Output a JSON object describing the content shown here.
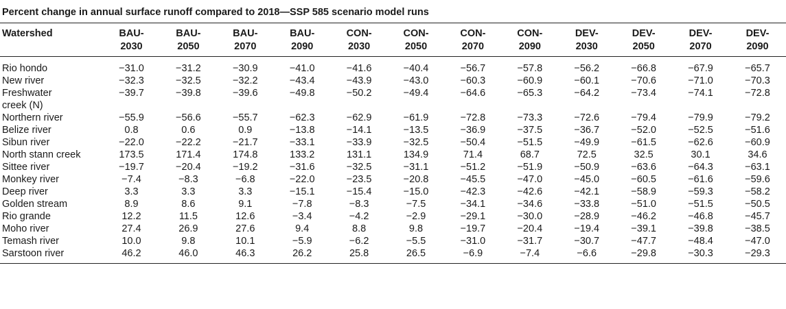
{
  "caption": "Percent change in annual surface runoff compared to 2018—SSP 585 scenario model runs",
  "header": {
    "watershed_label": "Watershed",
    "columns": [
      [
        "BAU-",
        "2030"
      ],
      [
        "BAU-",
        "2050"
      ],
      [
        "BAU-",
        "2070"
      ],
      [
        "BAU-",
        "2090"
      ],
      [
        "CON-",
        "2030"
      ],
      [
        "CON-",
        "2050"
      ],
      [
        "CON-",
        "2070"
      ],
      [
        "CON-",
        "2090"
      ],
      [
        "DEV-",
        "2030"
      ],
      [
        "DEV-",
        "2050"
      ],
      [
        "DEV-",
        "2070"
      ],
      [
        "DEV-",
        "2090"
      ]
    ]
  },
  "rows": [
    {
      "name": "Rio hondo",
      "values": [
        "−31.0",
        "−31.2",
        "−30.9",
        "−41.0",
        "−41.6",
        "−40.4",
        "−56.7",
        "−57.8",
        "−56.2",
        "−66.8",
        "−67.9",
        "−65.7"
      ]
    },
    {
      "name": "New river",
      "values": [
        "−32.3",
        "−32.5",
        "−32.2",
        "−43.4",
        "−43.9",
        "−43.0",
        "−60.3",
        "−60.9",
        "−60.1",
        "−70.6",
        "−71.0",
        "−70.3"
      ]
    },
    {
      "name": "Freshwater creek (N)",
      "name_lines": [
        "Freshwater",
        "creek (N)"
      ],
      "values": [
        "−39.7",
        "−39.8",
        "−39.6",
        "−49.8",
        "−50.2",
        "−49.4",
        "−64.6",
        "−65.3",
        "−64.2",
        "−73.4",
        "−74.1",
        "−72.8"
      ]
    },
    {
      "name": "Northern river",
      "values": [
        "−55.9",
        "−56.6",
        "−55.7",
        "−62.3",
        "−62.9",
        "−61.9",
        "−72.8",
        "−73.3",
        "−72.6",
        "−79.4",
        "−79.9",
        "−79.2"
      ]
    },
    {
      "name": "Belize river",
      "values": [
        "0.8",
        "0.6",
        "0.9",
        "−13.8",
        "−14.1",
        "−13.5",
        "−36.9",
        "−37.5",
        "−36.7",
        "−52.0",
        "−52.5",
        "−51.6"
      ]
    },
    {
      "name": "Sibun river",
      "values": [
        "−22.0",
        "−22.2",
        "−21.7",
        "−33.1",
        "−33.9",
        "−32.5",
        "−50.4",
        "−51.5",
        "−49.9",
        "−61.5",
        "−62.6",
        "−60.9"
      ]
    },
    {
      "name": "North stann creek",
      "values": [
        "173.5",
        "171.4",
        "174.8",
        "133.2",
        "131.1",
        "134.9",
        "71.4",
        "68.7",
        "72.5",
        "32.5",
        "30.1",
        "34.6"
      ]
    },
    {
      "name": "Sittee river",
      "values": [
        "−19.7",
        "−20.4",
        "−19.2",
        "−31.6",
        "−32.5",
        "−31.1",
        "−51.2",
        "−51.9",
        "−50.9",
        "−63.6",
        "−64.3",
        "−63.1"
      ]
    },
    {
      "name": "Monkey river",
      "values": [
        "−7.4",
        "−8.3",
        "−6.8",
        "−22.0",
        "−23.5",
        "−20.8",
        "−45.5",
        "−47.0",
        "−45.0",
        "−60.5",
        "−61.6",
        "−59.6"
      ]
    },
    {
      "name": "Deep river",
      "values": [
        "3.3",
        "3.3",
        "3.3",
        "−15.1",
        "−15.4",
        "−15.0",
        "−42.3",
        "−42.6",
        "−42.1",
        "−58.9",
        "−59.3",
        "−58.2"
      ]
    },
    {
      "name": "Golden stream",
      "values": [
        "8.9",
        "8.6",
        "9.1",
        "−7.8",
        "−8.3",
        "−7.5",
        "−34.1",
        "−34.6",
        "−33.8",
        "−51.0",
        "−51.5",
        "−50.5"
      ]
    },
    {
      "name": "Rio grande",
      "values": [
        "12.2",
        "11.5",
        "12.6",
        "−3.4",
        "−4.2",
        "−2.9",
        "−29.1",
        "−30.0",
        "−28.9",
        "−46.2",
        "−46.8",
        "−45.7"
      ]
    },
    {
      "name": "Moho river",
      "values": [
        "27.4",
        "26.9",
        "27.6",
        "9.4",
        "8.8",
        "9.8",
        "−19.7",
        "−20.4",
        "−19.4",
        "−39.1",
        "−39.8",
        "−38.5"
      ]
    },
    {
      "name": "Temash river",
      "values": [
        "10.0",
        "9.8",
        "10.1",
        "−5.9",
        "−6.2",
        "−5.5",
        "−31.0",
        "−31.7",
        "−30.7",
        "−47.7",
        "−48.4",
        "−47.0"
      ]
    },
    {
      "name": "Sarstoon river",
      "values": [
        "46.2",
        "46.0",
        "46.3",
        "26.2",
        "25.8",
        "26.5",
        "−6.9",
        "−7.4",
        "−6.6",
        "−29.8",
        "−30.3",
        "−29.3"
      ]
    }
  ]
}
